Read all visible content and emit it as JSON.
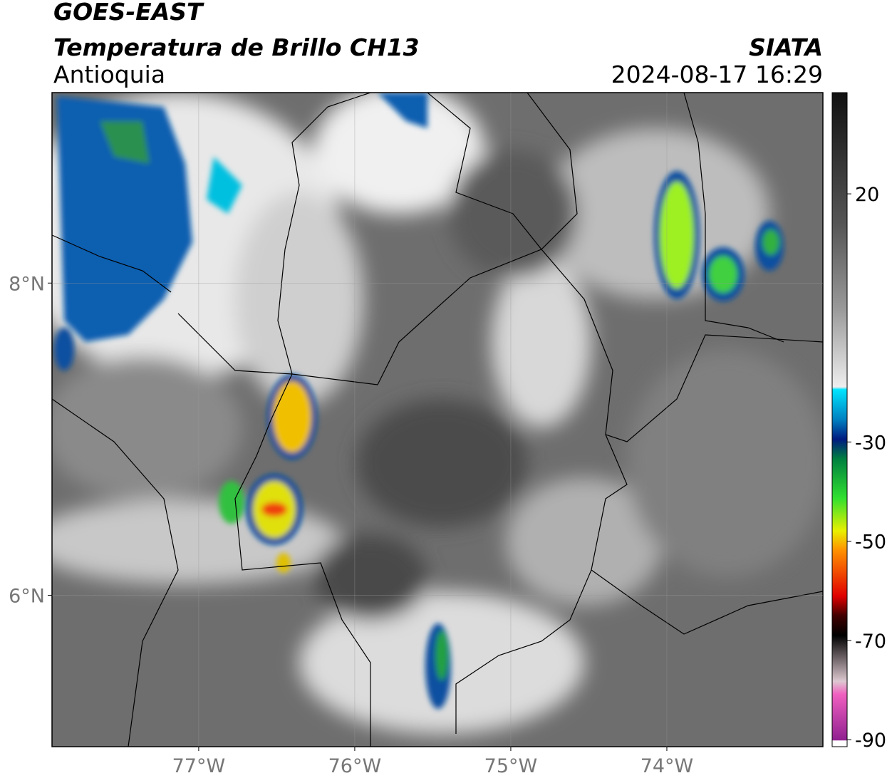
{
  "header": {
    "title": "GOES-EAST",
    "subtitle": "Temperatura de Brillo CH13",
    "region": "Antioquia",
    "source": "SIATA",
    "datetime": "2024-08-17 16:29"
  },
  "map": {
    "xlim": [
      -77.94,
      -73
    ],
    "ylim": [
      5.03,
      9.22
    ],
    "xticks": [
      {
        "value": -77,
        "label": "77°W"
      },
      {
        "value": -76,
        "label": "76°W"
      },
      {
        "value": -75,
        "label": "75°W"
      },
      {
        "value": -74,
        "label": "74°W"
      }
    ],
    "yticks": [
      {
        "value": 8,
        "label": "8°N"
      },
      {
        "value": 6,
        "label": "6°N"
      }
    ],
    "grid": true
  },
  "colorbar": {
    "lim": [
      -91.4,
      40.4
    ],
    "ticks": [
      20,
      -30,
      -50,
      -70,
      -90
    ]
  }
}
